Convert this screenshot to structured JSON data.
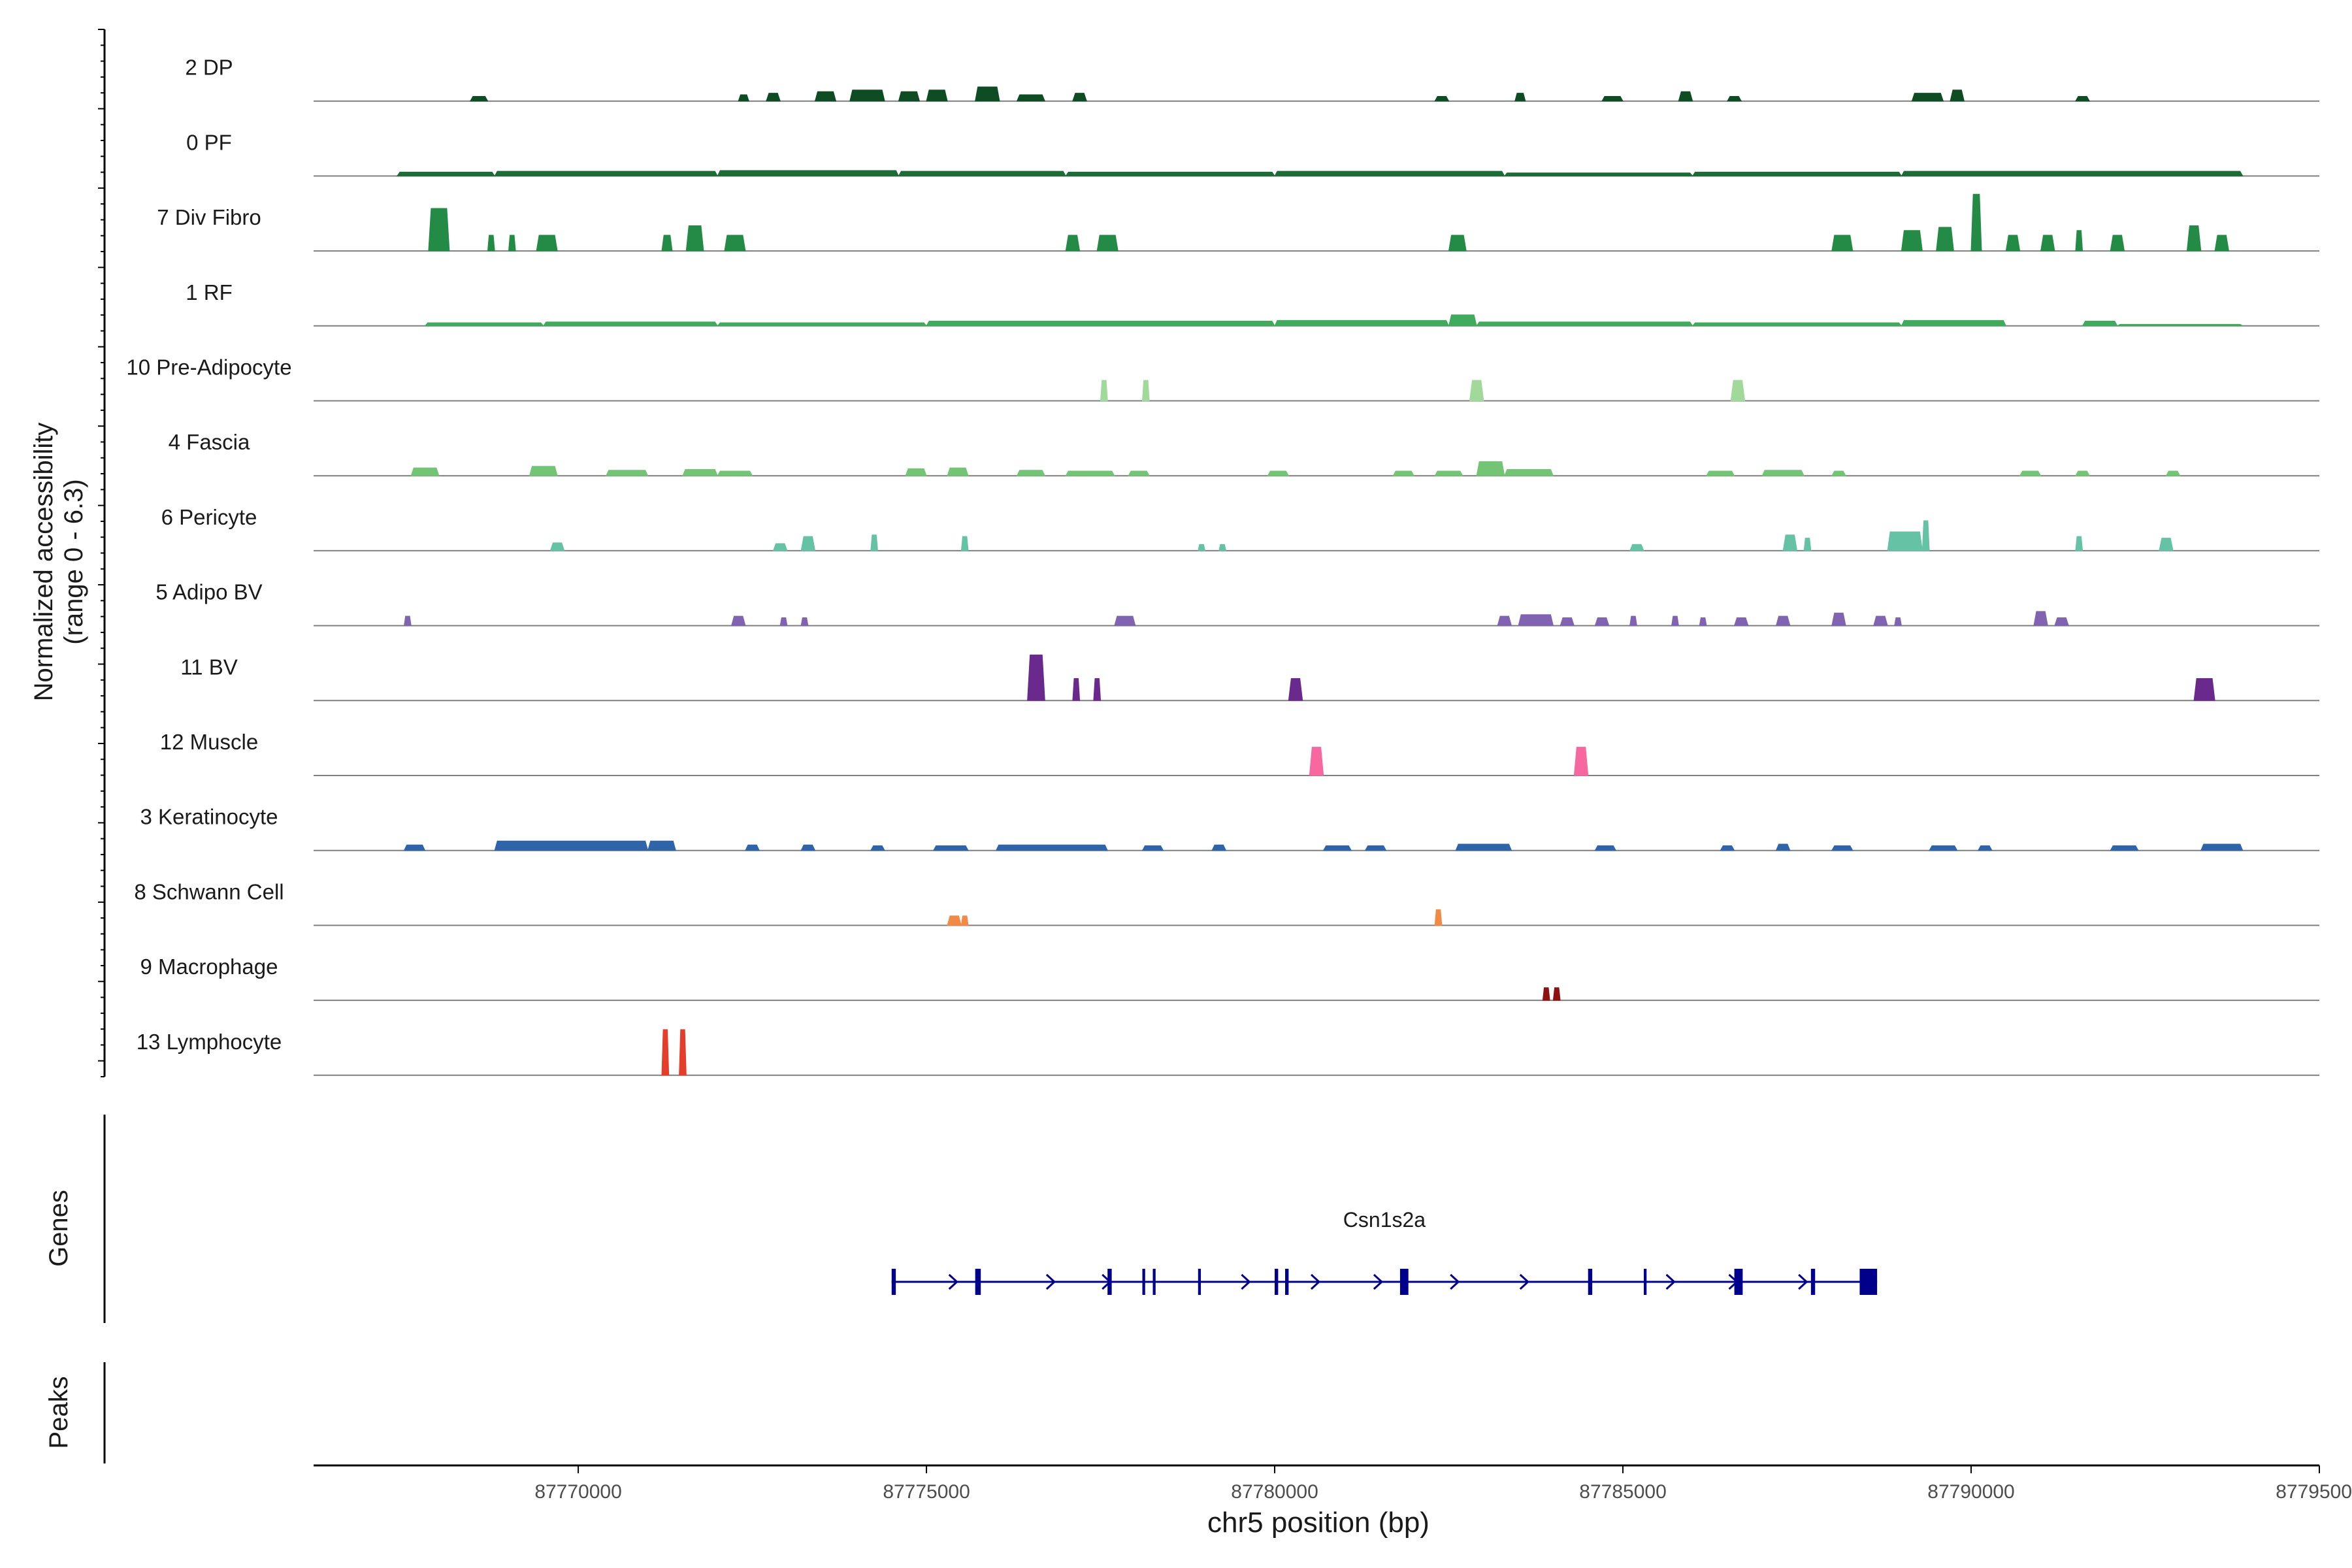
{
  "chart_data": {
    "type": "area",
    "title": "",
    "ylabel": "Normalized accessibility",
    "ylabel_range": "(range 0 - 6.3)",
    "xlabel": "chr5 position (bp)",
    "xlim": [
      87766200,
      87795000
    ],
    "ylim": [
      0,
      6.3
    ],
    "x_ticks": [
      87770000,
      87775000,
      87780000,
      87785000,
      87790000,
      87795000
    ],
    "x_tick_labels": [
      "87770000",
      "87775000",
      "87780000",
      "87785000",
      "87790000",
      "87795000"
    ],
    "tracks": [
      {
        "name": "2 DP",
        "color": "#0e4d24",
        "peaks": [
          [
            87768450,
            87768700,
            0.3
          ],
          [
            87772300,
            87772450,
            0.4
          ],
          [
            87772700,
            87772900,
            0.5
          ],
          [
            87773400,
            87773700,
            0.6
          ],
          [
            87773900,
            87774400,
            0.7
          ],
          [
            87774600,
            87774900,
            0.6
          ],
          [
            87775000,
            87775300,
            0.7
          ],
          [
            87775700,
            87776050,
            0.9
          ],
          [
            87776300,
            87776700,
            0.4
          ],
          [
            87777100,
            87777300,
            0.5
          ],
          [
            87782300,
            87782500,
            0.3
          ],
          [
            87783450,
            87783600,
            0.5
          ],
          [
            87784700,
            87785000,
            0.3
          ],
          [
            87785800,
            87786000,
            0.6
          ],
          [
            87786500,
            87786700,
            0.3
          ],
          [
            87789150,
            87789600,
            0.5
          ],
          [
            87789700,
            87789900,
            0.7
          ],
          [
            87791500,
            87791700,
            0.3
          ]
        ]
      },
      {
        "name": "0 PF",
        "color": "#1d6b36",
        "peaks": [
          [
            87767400,
            87768800,
            0.25
          ],
          [
            87768800,
            87772000,
            0.3
          ],
          [
            87772000,
            87774600,
            0.35
          ],
          [
            87774600,
            87777000,
            0.3
          ],
          [
            87777000,
            87780000,
            0.25
          ],
          [
            87780000,
            87783300,
            0.3
          ],
          [
            87783300,
            87786000,
            0.2
          ],
          [
            87786000,
            87789000,
            0.25
          ],
          [
            87789000,
            87793900,
            0.3
          ]
        ]
      },
      {
        "name": "7 Div Fibro",
        "color": "#238b45",
        "peaks": [
          [
            87767850,
            87768150,
            2.7
          ],
          [
            87768700,
            87768800,
            1.0
          ],
          [
            87769000,
            87769100,
            1.0
          ],
          [
            87769400,
            87769700,
            1.0
          ],
          [
            87771200,
            87771350,
            1.0
          ],
          [
            87771550,
            87771800,
            1.6
          ],
          [
            87772100,
            87772400,
            1.0
          ],
          [
            87777000,
            87777200,
            1.0
          ],
          [
            87777450,
            87777750,
            1.0
          ],
          [
            87782500,
            87782750,
            1.0
          ],
          [
            87788000,
            87788300,
            1.0
          ],
          [
            87789000,
            87789300,
            1.3
          ],
          [
            87789500,
            87789750,
            1.5
          ],
          [
            87790000,
            87790150,
            3.6
          ],
          [
            87790500,
            87790700,
            1.0
          ],
          [
            87791000,
            87791200,
            1.0
          ],
          [
            87791500,
            87791600,
            1.3
          ],
          [
            87792000,
            87792200,
            1.0
          ],
          [
            87793100,
            87793300,
            1.6
          ],
          [
            87793500,
            87793700,
            1.0
          ]
        ]
      },
      {
        "name": "1 RF",
        "color": "#41ab5d",
        "peaks": [
          [
            87767800,
            87769500,
            0.2
          ],
          [
            87769500,
            87772000,
            0.25
          ],
          [
            87772000,
            87775000,
            0.2
          ],
          [
            87775000,
            87780000,
            0.3
          ],
          [
            87780000,
            87782500,
            0.35
          ],
          [
            87782500,
            87782900,
            0.7
          ],
          [
            87782900,
            87786000,
            0.25
          ],
          [
            87786000,
            87789000,
            0.2
          ],
          [
            87789000,
            87790500,
            0.35
          ],
          [
            87791600,
            87792100,
            0.3
          ],
          [
            87792100,
            87793900,
            0.1
          ]
        ]
      },
      {
        "name": "10 Pre-Adipocyte",
        "color": "#a1d99b",
        "peaks": [
          [
            87777500,
            87777600,
            1.3
          ],
          [
            87778100,
            87778200,
            1.3
          ],
          [
            87782800,
            87783000,
            1.3
          ],
          [
            87786550,
            87786750,
            1.3
          ]
        ]
      },
      {
        "name": "4 Fascia",
        "color": "#74c476",
        "peaks": [
          [
            87767600,
            87768000,
            0.5
          ],
          [
            87769300,
            87769700,
            0.6
          ],
          [
            87770400,
            87771000,
            0.35
          ],
          [
            87771500,
            87772000,
            0.4
          ],
          [
            87772000,
            87772500,
            0.3
          ],
          [
            87774700,
            87775000,
            0.45
          ],
          [
            87775300,
            87775600,
            0.5
          ],
          [
            87776300,
            87776700,
            0.35
          ],
          [
            87777000,
            87777700,
            0.3
          ],
          [
            87777900,
            87778200,
            0.3
          ],
          [
            87779900,
            87780200,
            0.3
          ],
          [
            87781700,
            87782000,
            0.3
          ],
          [
            87782300,
            87782700,
            0.3
          ],
          [
            87782900,
            87783300,
            0.9
          ],
          [
            87783300,
            87784000,
            0.4
          ],
          [
            87786200,
            87786600,
            0.3
          ],
          [
            87787000,
            87787600,
            0.35
          ],
          [
            87788000,
            87788200,
            0.3
          ],
          [
            87790700,
            87791000,
            0.3
          ],
          [
            87791500,
            87791700,
            0.3
          ],
          [
            87792800,
            87793000,
            0.3
          ]
        ]
      },
      {
        "name": "6 Pericyte",
        "color": "#66c2a4",
        "peaks": [
          [
            87769600,
            87769800,
            0.5
          ],
          [
            87772800,
            87773000,
            0.45
          ],
          [
            87773200,
            87773400,
            0.9
          ],
          [
            87774200,
            87774300,
            1.0
          ],
          [
            87775500,
            87775600,
            0.9
          ],
          [
            87778900,
            87779000,
            0.4
          ],
          [
            87779200,
            87779300,
            0.4
          ],
          [
            87785100,
            87785300,
            0.4
          ],
          [
            87787300,
            87787500,
            1.0
          ],
          [
            87787600,
            87787700,
            0.8
          ],
          [
            87788800,
            87789300,
            1.2
          ],
          [
            87789300,
            87789400,
            1.9
          ],
          [
            87791500,
            87791600,
            0.9
          ],
          [
            87792700,
            87792900,
            0.8
          ]
        ]
      },
      {
        "name": "5 Adipo BV",
        "color": "#8064b2",
        "peaks": [
          [
            87767500,
            87767600,
            0.6
          ],
          [
            87772200,
            87772400,
            0.6
          ],
          [
            87772900,
            87773000,
            0.5
          ],
          [
            87773200,
            87773300,
            0.5
          ],
          [
            87777700,
            87778000,
            0.6
          ],
          [
            87783200,
            87783400,
            0.6
          ],
          [
            87783500,
            87784000,
            0.7
          ],
          [
            87784100,
            87784300,
            0.5
          ],
          [
            87784600,
            87784800,
            0.5
          ],
          [
            87785100,
            87785200,
            0.6
          ],
          [
            87785700,
            87785800,
            0.6
          ],
          [
            87786100,
            87786200,
            0.5
          ],
          [
            87786600,
            87786800,
            0.5
          ],
          [
            87787200,
            87787400,
            0.6
          ],
          [
            87788000,
            87788200,
            0.8
          ],
          [
            87788600,
            87788800,
            0.6
          ],
          [
            87788900,
            87789000,
            0.5
          ],
          [
            87790900,
            87791100,
            0.9
          ],
          [
            87791200,
            87791400,
            0.5
          ]
        ]
      },
      {
        "name": "11 BV",
        "color": "#6a2a8d",
        "peaks": [
          [
            87776450,
            87776700,
            2.9
          ],
          [
            87777100,
            87777200,
            1.4
          ],
          [
            87777400,
            87777500,
            1.4
          ],
          [
            87780200,
            87780400,
            1.4
          ],
          [
            87793200,
            87793500,
            1.4
          ]
        ]
      },
      {
        "name": "12 Muscle",
        "color": "#f768a1",
        "peaks": [
          [
            87780500,
            87780700,
            1.8
          ],
          [
            87784300,
            87784500,
            1.8
          ]
        ]
      },
      {
        "name": "3 Keratinocyte",
        "color": "#2f64a8",
        "peaks": [
          [
            87767500,
            87767800,
            0.35
          ],
          [
            87768800,
            87771000,
            0.6
          ],
          [
            87771000,
            87771400,
            0.6
          ],
          [
            87772400,
            87772600,
            0.35
          ],
          [
            87773200,
            87773400,
            0.35
          ],
          [
            87774200,
            87774400,
            0.3
          ],
          [
            87775100,
            87775600,
            0.3
          ],
          [
            87776000,
            87777600,
            0.35
          ],
          [
            87778100,
            87778400,
            0.3
          ],
          [
            87779100,
            87779300,
            0.35
          ],
          [
            87780700,
            87781100,
            0.3
          ],
          [
            87781300,
            87781600,
            0.3
          ],
          [
            87782600,
            87783400,
            0.4
          ],
          [
            87784600,
            87784900,
            0.3
          ],
          [
            87786400,
            87786600,
            0.3
          ],
          [
            87787200,
            87787400,
            0.4
          ],
          [
            87788000,
            87788300,
            0.3
          ],
          [
            87789400,
            87789800,
            0.3
          ],
          [
            87790100,
            87790300,
            0.3
          ],
          [
            87792000,
            87792400,
            0.3
          ],
          [
            87793300,
            87793900,
            0.4
          ]
        ]
      },
      {
        "name": "8 Schwann Cell",
        "color": "#f08a44",
        "peaks": [
          [
            87775300,
            87775500,
            0.6
          ],
          [
            87775500,
            87775600,
            0.6
          ],
          [
            87782300,
            87782400,
            1.0
          ]
        ]
      },
      {
        "name": "9 Macrophage",
        "color": "#8f1212",
        "peaks": [
          [
            87783850,
            87783950,
            0.8
          ],
          [
            87784000,
            87784100,
            0.8
          ]
        ]
      },
      {
        "name": "13 Lymphocyte",
        "color": "#e43e2b",
        "peaks": [
          [
            87771200,
            87771300,
            2.9
          ],
          [
            87771450,
            87771550,
            2.9
          ]
        ]
      }
    ],
    "gene_track_label": "Genes",
    "peaks_track_label": "Peaks",
    "genes": [
      {
        "name": "Csn1s2a",
        "start": 87774500,
        "end": 87788650,
        "strand": "+",
        "color": "#00008b",
        "exons": [
          [
            87774500,
            87774560
          ],
          [
            87775700,
            87775780
          ],
          [
            87777600,
            87777660
          ],
          [
            87778100,
            87778140
          ],
          [
            87778250,
            87778290
          ],
          [
            87778900,
            87778940
          ],
          [
            87780000,
            87780050
          ],
          [
            87780150,
            87780200
          ],
          [
            87781800,
            87781920
          ],
          [
            87784500,
            87784560
          ],
          [
            87785300,
            87785340
          ],
          [
            87786600,
            87786720
          ],
          [
            87787700,
            87787760
          ],
          [
            87788400,
            87788650
          ]
        ],
        "arrows": [
          87775400,
          87776800,
          87777600,
          87779600,
          87780600,
          87781500,
          87782600,
          87783600,
          87785700,
          87786600,
          87787600
        ]
      }
    ]
  }
}
